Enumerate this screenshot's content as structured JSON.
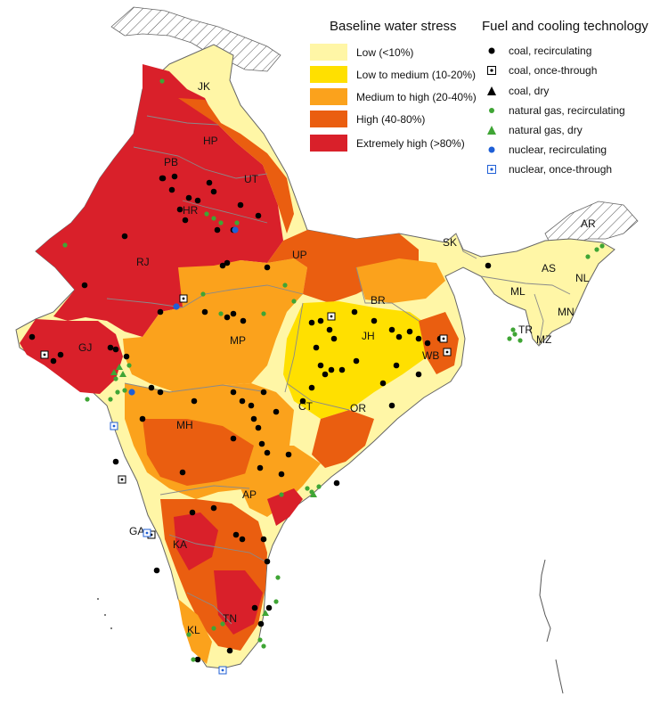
{
  "legend_water": {
    "title": "Baseline water stress",
    "items": [
      {
        "label": "Low (<10%)",
        "color": "#fff6a6"
      },
      {
        "label": "Low to medium (10-20%)",
        "color": "#ffe000"
      },
      {
        "label": "Medium to high (20-40%)",
        "color": "#fba21c"
      },
      {
        "label": "High (40-80%)",
        "color": "#ea5e10"
      },
      {
        "label": "Extremely high (>80%)",
        "color": "#d9202a"
      }
    ]
  },
  "legend_fuel": {
    "title": "Fuel and cooling technology",
    "items": [
      {
        "label": "coal, recirculating",
        "icon": "black-dot-icon"
      },
      {
        "label": "coal, once-through",
        "icon": "black-square-dot-icon"
      },
      {
        "label": "coal, dry",
        "icon": "black-triangle-icon"
      },
      {
        "label": "natural gas, recirculating",
        "icon": "green-dot-icon"
      },
      {
        "label": "natural gas, dry",
        "icon": "green-triangle-icon"
      },
      {
        "label": "nuclear, recirculating",
        "icon": "blue-dot-icon"
      },
      {
        "label": "nuclear, once-through",
        "icon": "blue-square-dot-icon"
      }
    ]
  },
  "states": {
    "JK": "JK",
    "HP": "HP",
    "PB": "PB",
    "UT": "UT",
    "HR": "HR",
    "RJ": "RJ",
    "UP": "UP",
    "SK": "SK",
    "AR": "AR",
    "AS": "AS",
    "NL": "NL",
    "ML": "ML",
    "MN": "MN",
    "BR": "BR",
    "GJ": "GJ",
    "MP": "MP",
    "JH": "JH",
    "WB": "WB",
    "TR": "TR",
    "MZ": "MZ",
    "CT": "CT",
    "OR": "OR",
    "MH": "MH",
    "AP": "AP",
    "GA": "GA",
    "KA": "KA",
    "TN": "TN",
    "KL": "KL"
  },
  "colors": {
    "coal": "#000000",
    "natural_gas": "#3fa535",
    "nuclear": "#1f5fd6",
    "border": "#8a8a8a"
  }
}
